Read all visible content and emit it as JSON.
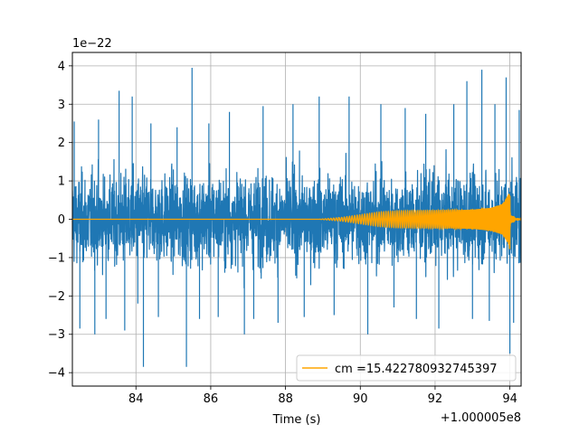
{
  "chart_data": {
    "type": "line",
    "title": "",
    "xlabel": "Time (s)",
    "ylabel": "",
    "x_offset_label": "+1.000005e8",
    "y_scale_label": "1e−22",
    "xlim": [
      82.3,
      94.3
    ],
    "ylim": [
      -4.35,
      4.35
    ],
    "x_ticks": [
      84,
      86,
      88,
      90,
      92,
      94
    ],
    "x_tick_labels": [
      "84",
      "86",
      "88",
      "90",
      "92",
      "94"
    ],
    "y_ticks": [
      -4,
      -3,
      -2,
      -1,
      0,
      1,
      2,
      3,
      4
    ],
    "y_tick_labels": [
      "−4",
      "−3",
      "−2",
      "−1",
      "0",
      "1",
      "2",
      "3",
      "4"
    ],
    "grid": true,
    "legend_position": "lower-right",
    "series": [
      {
        "color": "#1f77b4",
        "kind": "noise",
        "typical_envelope": 1.9,
        "spikes": [
          {
            "x": 82.35,
            "y": 2.55
          },
          {
            "x": 82.5,
            "y": -2.85
          },
          {
            "x": 82.9,
            "y": -3.0
          },
          {
            "x": 83.0,
            "y": 2.6
          },
          {
            "x": 83.2,
            "y": -2.6
          },
          {
            "x": 83.55,
            "y": 3.35
          },
          {
            "x": 83.7,
            "y": -2.9
          },
          {
            "x": 83.9,
            "y": 3.2
          },
          {
            "x": 84.05,
            "y": -2.2
          },
          {
            "x": 84.2,
            "y": -3.85
          },
          {
            "x": 84.4,
            "y": 2.5
          },
          {
            "x": 84.6,
            "y": -2.55
          },
          {
            "x": 85.1,
            "y": 2.4
          },
          {
            "x": 85.35,
            "y": -3.85
          },
          {
            "x": 85.5,
            "y": 3.95
          },
          {
            "x": 85.7,
            "y": -2.6
          },
          {
            "x": 85.95,
            "y": 2.5
          },
          {
            "x": 86.2,
            "y": -2.55
          },
          {
            "x": 86.5,
            "y": 2.8
          },
          {
            "x": 86.9,
            "y": -3.0
          },
          {
            "x": 87.15,
            "y": -2.6
          },
          {
            "x": 87.4,
            "y": 2.95
          },
          {
            "x": 87.8,
            "y": -2.7
          },
          {
            "x": 88.2,
            "y": 3.0
          },
          {
            "x": 88.5,
            "y": -2.55
          },
          {
            "x": 88.9,
            "y": 3.2
          },
          {
            "x": 89.3,
            "y": -2.5
          },
          {
            "x": 89.7,
            "y": 3.2
          },
          {
            "x": 90.2,
            "y": -3.0
          },
          {
            "x": 90.55,
            "y": 3.0
          },
          {
            "x": 90.9,
            "y": -2.3
          },
          {
            "x": 91.2,
            "y": 2.9
          },
          {
            "x": 91.5,
            "y": -2.6
          },
          {
            "x": 91.75,
            "y": 2.75
          },
          {
            "x": 92.1,
            "y": -2.85
          },
          {
            "x": 92.5,
            "y": 3.0
          },
          {
            "x": 92.85,
            "y": 3.6
          },
          {
            "x": 93.0,
            "y": -2.6
          },
          {
            "x": 93.25,
            "y": 3.9
          },
          {
            "x": 93.45,
            "y": -2.65
          },
          {
            "x": 93.6,
            "y": 3.0
          },
          {
            "x": 93.9,
            "y": 3.7
          },
          {
            "x": 94.0,
            "y": -3.5
          },
          {
            "x": 94.1,
            "y": -2.7
          },
          {
            "x": 94.25,
            "y": 2.85
          }
        ]
      },
      {
        "name": "cm =15.422780932745397",
        "color": "#ffa500",
        "kind": "chirp",
        "x_start": 88.9,
        "x_merger": 94.0,
        "x_end": 94.3,
        "envelope_points": [
          {
            "x": 88.9,
            "amp": 0.0
          },
          {
            "x": 89.5,
            "amp": 0.05
          },
          {
            "x": 90.0,
            "amp": 0.12
          },
          {
            "x": 90.5,
            "amp": 0.19
          },
          {
            "x": 91.0,
            "amp": 0.22
          },
          {
            "x": 92.0,
            "amp": 0.23
          },
          {
            "x": 93.0,
            "amp": 0.25
          },
          {
            "x": 93.5,
            "amp": 0.3
          },
          {
            "x": 93.8,
            "amp": 0.4
          },
          {
            "x": 93.95,
            "amp": 0.62
          },
          {
            "x": 94.0,
            "amp": 0.8
          },
          {
            "x": 94.05,
            "amp": 0.1
          },
          {
            "x": 94.3,
            "amp": 0.0
          }
        ]
      }
    ]
  }
}
